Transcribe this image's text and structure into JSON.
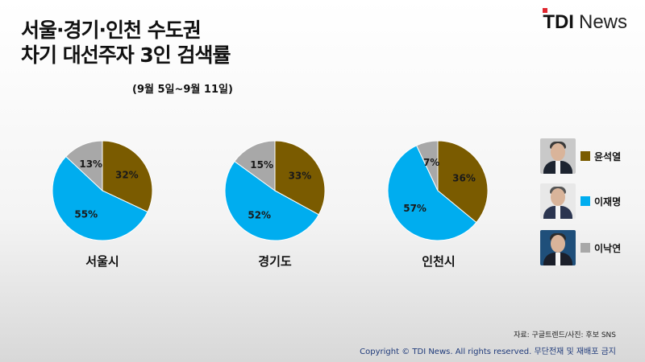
{
  "header": {
    "title_line1": "서울·경기·인천 수도권",
    "title_line2": "차기 대선주자 3인 검색률",
    "subtitle": "(9월 5일~9월 11일)",
    "logo_bold": "TDI",
    "logo_light": "News",
    "logo_accent_color": "#e0262f"
  },
  "chart_data": {
    "type": "pie",
    "series_names": [
      "윤석열",
      "이재명",
      "이낙연"
    ],
    "colors": [
      "#7a5b00",
      "#00adef",
      "#a8a8a8"
    ],
    "charts": [
      {
        "category": "서울시",
        "values": [
          32,
          55,
          13
        ],
        "labels": [
          "32%",
          "55%",
          "13%"
        ]
      },
      {
        "category": "경기도",
        "values": [
          33,
          52,
          15
        ],
        "labels": [
          "33%",
          "52%",
          "15%"
        ]
      },
      {
        "category": "인천시",
        "values": [
          36,
          57,
          7
        ],
        "labels": [
          "36%",
          "57%",
          "7%"
        ]
      }
    ],
    "legend_position": "right"
  },
  "legend": [
    {
      "name": "윤석열",
      "color": "#7a5b00",
      "photo_icon": "candidate-photo-icon"
    },
    {
      "name": "이재명",
      "color": "#00adef",
      "photo_icon": "candidate-photo-icon"
    },
    {
      "name": "이낙연",
      "color": "#a8a8a8",
      "photo_icon": "candidate-photo-icon"
    }
  ],
  "footer": {
    "source": "자료: 구글트렌드/사진: 후보 SNS",
    "copyright": "Copyright © TDI News. All rights reserved. 무단전재 및 재배포 금지"
  }
}
